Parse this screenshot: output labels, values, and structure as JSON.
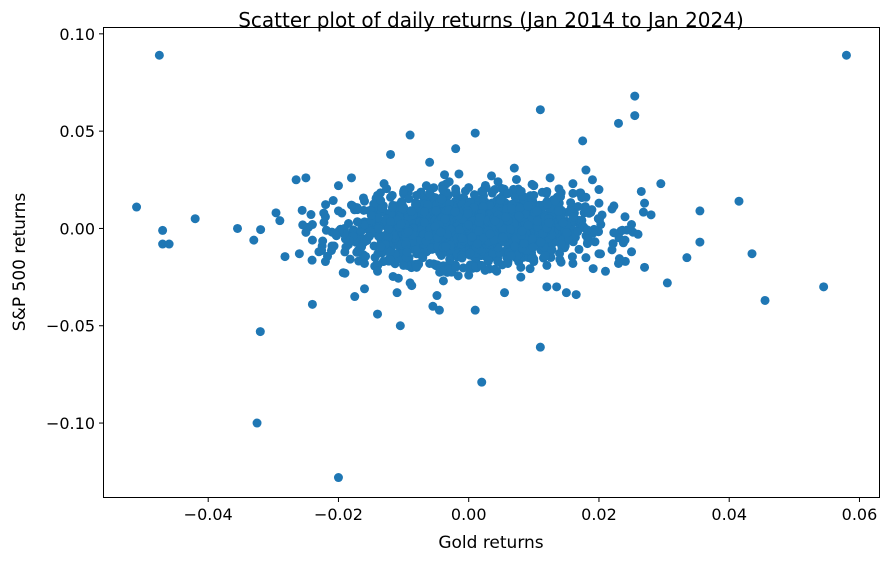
{
  "chart_data": {
    "type": "scatter",
    "title": "Scatter plot of daily returns (Jan 2014 to Jan 2024)",
    "xlabel": "Gold returns",
    "ylabel": "S&P 500 returns",
    "xlim": [
      -0.056,
      0.063
    ],
    "ylim": [
      -0.138,
      0.103
    ],
    "xticks": [
      -0.04,
      -0.02,
      0.0,
      0.02,
      0.04,
      0.06
    ],
    "xtick_labels": [
      "−0.04",
      "−0.02",
      "0.00",
      "0.02",
      "0.04",
      "0.06"
    ],
    "yticks": [
      -0.1,
      -0.05,
      0.0,
      0.05,
      0.1
    ],
    "ytick_labels": [
      "−0.10",
      "−0.05",
      "0.00",
      "0.05",
      "0.10"
    ],
    "grid": false,
    "marker_color": "#1f77b4",
    "series": [
      {
        "points": [
          [
            -0.0475,
            0.089
          ],
          [
            0.058,
            0.089
          ],
          [
            -0.051,
            0.011
          ],
          [
            -0.047,
            -0.001
          ],
          [
            -0.047,
            -0.008
          ],
          [
            -0.046,
            -0.008
          ],
          [
            -0.042,
            0.005
          ],
          [
            -0.0355,
            0.0
          ],
          [
            -0.033,
            -0.006
          ],
          [
            -0.032,
            -0.053
          ],
          [
            -0.0325,
            -0.1
          ],
          [
            -0.02,
            -0.128
          ],
          [
            0.002,
            -0.079
          ],
          [
            0.011,
            -0.061
          ],
          [
            -0.0105,
            -0.05
          ],
          [
            -0.024,
            -0.039
          ],
          [
            0.011,
            0.061
          ],
          [
            0.0255,
            0.068
          ],
          [
            0.0255,
            0.058
          ],
          [
            0.023,
            0.054
          ],
          [
            0.0175,
            0.045
          ],
          [
            0.001,
            0.049
          ],
          [
            -0.009,
            0.048
          ],
          [
            -0.002,
            0.041
          ],
          [
            -0.012,
            0.038
          ],
          [
            0.0415,
            0.014
          ],
          [
            0.0435,
            -0.013
          ],
          [
            0.0455,
            -0.037
          ],
          [
            0.0545,
            -0.03
          ],
          [
            0.0355,
            0.009
          ],
          [
            0.0355,
            -0.007
          ],
          [
            0.0335,
            -0.015
          ],
          [
            0.0305,
            -0.028
          ],
          [
            0.0295,
            0.023
          ],
          [
            0.0265,
            0.019
          ],
          [
            -0.0265,
            0.025
          ],
          [
            -0.025,
            0.026
          ],
          [
            -0.029,
            0.004
          ],
          [
            -0.02,
            0.022
          ],
          [
            -0.018,
            0.026
          ],
          [
            -0.014,
            -0.044
          ],
          [
            -0.0055,
            -0.04
          ],
          [
            -0.0045,
            -0.042
          ],
          [
            0.001,
            -0.042
          ],
          [
            0.0055,
            -0.033
          ],
          [
            0.012,
            -0.03
          ],
          [
            0.015,
            -0.033
          ],
          [
            0.0165,
            -0.034
          ],
          [
            0.0135,
            -0.03
          ],
          [
            0.008,
            -0.025
          ],
          [
            -0.0175,
            -0.035
          ],
          [
            -0.016,
            -0.031
          ],
          [
            -0.011,
            -0.033
          ],
          [
            -0.009,
            -0.028
          ],
          [
            0.021,
            -0.022
          ],
          [
            0.023,
            -0.018
          ],
          [
            0.025,
            -0.012
          ],
          [
            0.027,
            -0.02
          ],
          [
            0.028,
            0.007
          ],
          [
            0.027,
            0.013
          ],
          [
            0.018,
            0.03
          ],
          [
            0.019,
            0.025
          ],
          [
            0.016,
            0.023
          ],
          [
            0.02,
            0.02
          ],
          [
            -0.006,
            0.034
          ],
          [
            0.007,
            0.031
          ],
          [
            0.0035,
            0.027
          ],
          [
            -0.013,
            0.023
          ],
          [
            -0.009,
            0.021
          ],
          [
            -0.0065,
            0.022
          ],
          [
            0.0125,
            0.026
          ],
          [
            0.01,
            0.022
          ],
          [
            0.0045,
            0.024
          ],
          [
            -0.003,
            0.024
          ],
          [
            -0.0015,
            0.028
          ],
          [
            -0.023,
            -0.012
          ],
          [
            -0.022,
            -0.017
          ],
          [
            -0.019,
            -0.023
          ],
          [
            -0.016,
            -0.018
          ],
          [
            -0.014,
            -0.022
          ],
          [
            -0.012,
            -0.016
          ],
          [
            -0.01,
            -0.019
          ],
          [
            -0.008,
            -0.02
          ],
          [
            -0.006,
            -0.018
          ],
          [
            -0.004,
            -0.022
          ],
          [
            -0.002,
            -0.02
          ],
          [
            0.0,
            -0.024
          ],
          [
            0.002,
            -0.019
          ],
          [
            0.004,
            -0.021
          ],
          [
            0.006,
            -0.018
          ],
          [
            0.008,
            -0.02
          ],
          [
            0.01,
            -0.017
          ],
          [
            0.012,
            -0.019
          ],
          [
            0.014,
            -0.016
          ],
          [
            0.016,
            -0.018
          ],
          [
            0.018,
            -0.015
          ],
          [
            0.02,
            -0.013
          ],
          [
            0.022,
            -0.011
          ],
          [
            0.024,
            -0.006
          ],
          [
            0.026,
            -0.003
          ],
          [
            0.025,
            0.002
          ],
          [
            0.024,
            0.006
          ],
          [
            0.022,
            0.01
          ],
          [
            0.02,
            0.013
          ],
          [
            0.018,
            0.016
          ],
          [
            0.016,
            0.018
          ],
          [
            0.014,
            0.017
          ],
          [
            0.012,
            0.019
          ],
          [
            0.01,
            0.017
          ],
          [
            0.008,
            0.019
          ],
          [
            0.006,
            0.018
          ],
          [
            0.004,
            0.02
          ],
          [
            0.002,
            0.019
          ],
          [
            0.0,
            0.021
          ],
          [
            -0.002,
            0.019
          ],
          [
            -0.004,
            0.02
          ],
          [
            -0.006,
            0.018
          ],
          [
            -0.008,
            0.017
          ],
          [
            -0.01,
            0.019
          ],
          [
            -0.012,
            0.016
          ],
          [
            -0.014,
            0.017
          ],
          [
            -0.016,
            0.014
          ],
          [
            -0.018,
            0.012
          ],
          [
            -0.02,
            0.009
          ],
          [
            -0.022,
            0.006
          ],
          [
            -0.024,
            0.002
          ],
          [
            -0.025,
            -0.002
          ],
          [
            -0.024,
            -0.006
          ],
          [
            -0.021,
            -0.009
          ],
          [
            -0.026,
            -0.013
          ]
        ]
      }
    ]
  }
}
